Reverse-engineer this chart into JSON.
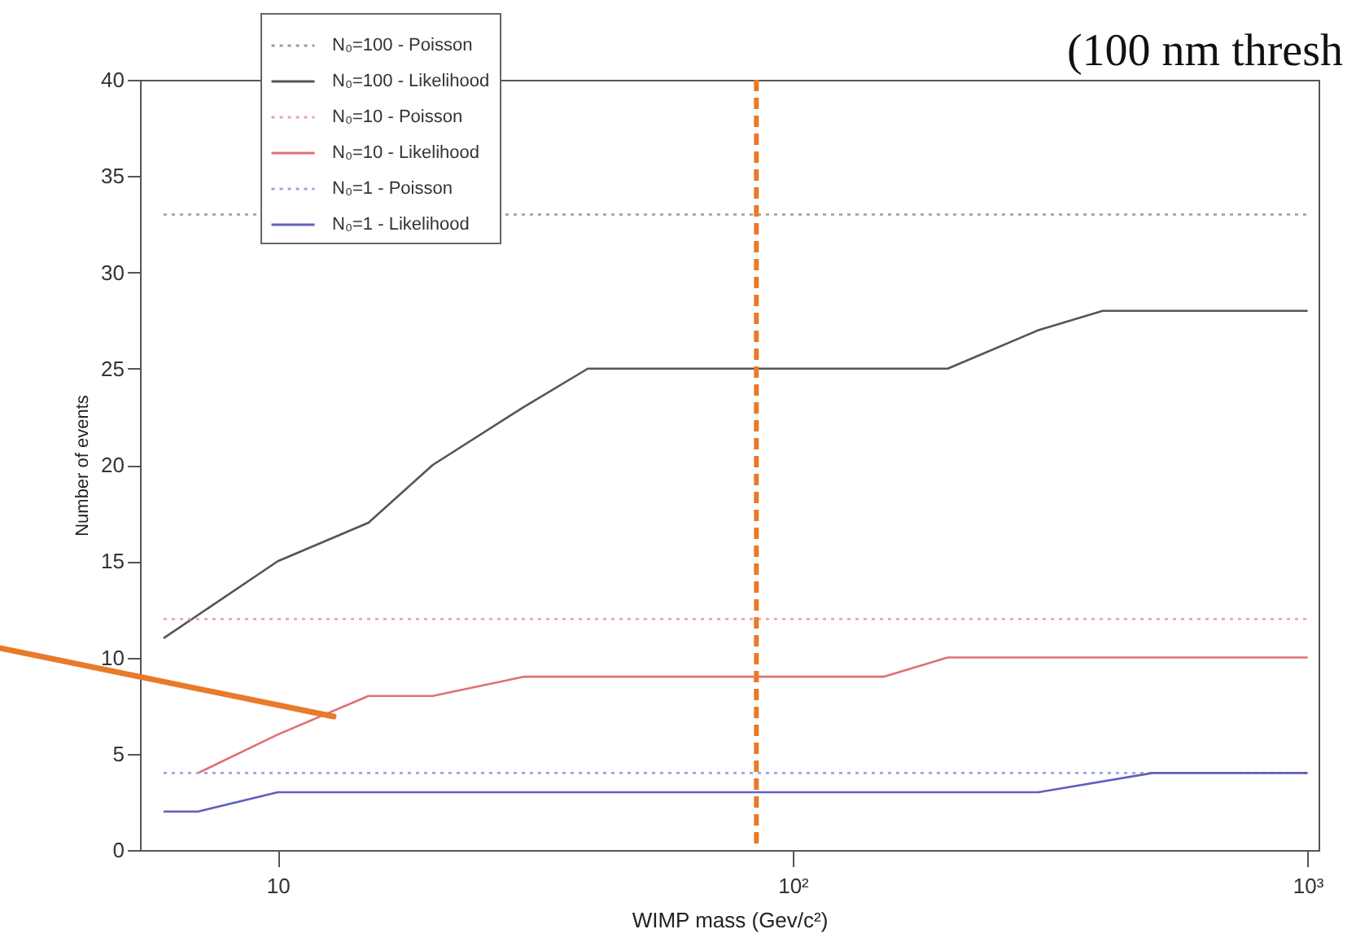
{
  "chart_data": {
    "type": "line",
    "xlabel": "WIMP mass (Gev/c²)",
    "ylabel": "Number of events",
    "log": "x",
    "xlim": [
      5.4,
      1050
    ],
    "xticks": [
      10,
      {
        "value": 100,
        "label": "10²"
      },
      {
        "value": 1000,
        "label": "10³"
      }
    ],
    "ylim": [
      0,
      40
    ],
    "yticks": [
      0,
      5,
      10,
      15,
      20,
      25,
      30,
      35,
      40
    ],
    "grid": false,
    "legend": "top left",
    "annotations": [
      "(100 nm thresh"
    ],
    "ref_lines": [
      {
        "axis": "x",
        "value": 85,
        "label": null,
        "color": "#e87a2a",
        "line_style": "dashed"
      }
    ],
    "series": [
      {
        "name": "N₀=100 - Poisson",
        "color": "#9a9a9a",
        "line_style": "dotted",
        "x": [
          6,
          1000
        ],
        "values": [
          33,
          33
        ]
      },
      {
        "name": "N₀=100 - Likelihood",
        "color": "#555555",
        "line_style": "solid",
        "x": [
          6,
          10,
          15,
          20,
          30,
          40,
          200,
          300,
          400,
          1000
        ],
        "values": [
          11,
          15,
          17,
          20,
          23,
          25,
          25,
          27,
          28,
          28
        ]
      },
      {
        "name": "N₀=10 - Poisson",
        "color": "#f0a0a0",
        "line_style": "dotted",
        "x": [
          6,
          1000
        ],
        "values": [
          12,
          12
        ]
      },
      {
        "name": "N₀=10 - Likelihood",
        "color": "#e07070",
        "line_style": "solid",
        "x": [
          7,
          10,
          15,
          20,
          30,
          150,
          200,
          1000
        ],
        "values": [
          4,
          6,
          8,
          8,
          9,
          9,
          10,
          10
        ]
      },
      {
        "name": "N₀=1 - Poisson",
        "color": "#a0a0e0",
        "line_style": "dotted",
        "x": [
          6,
          1000
        ],
        "values": [
          4,
          4
        ]
      },
      {
        "name": "N₀=1 - Likelihood",
        "color": "#6060c0",
        "line_style": "solid",
        "x": [
          6,
          7,
          10,
          300,
          500,
          1000
        ],
        "values": [
          2,
          2,
          3,
          3,
          4,
          4
        ]
      }
    ]
  }
}
